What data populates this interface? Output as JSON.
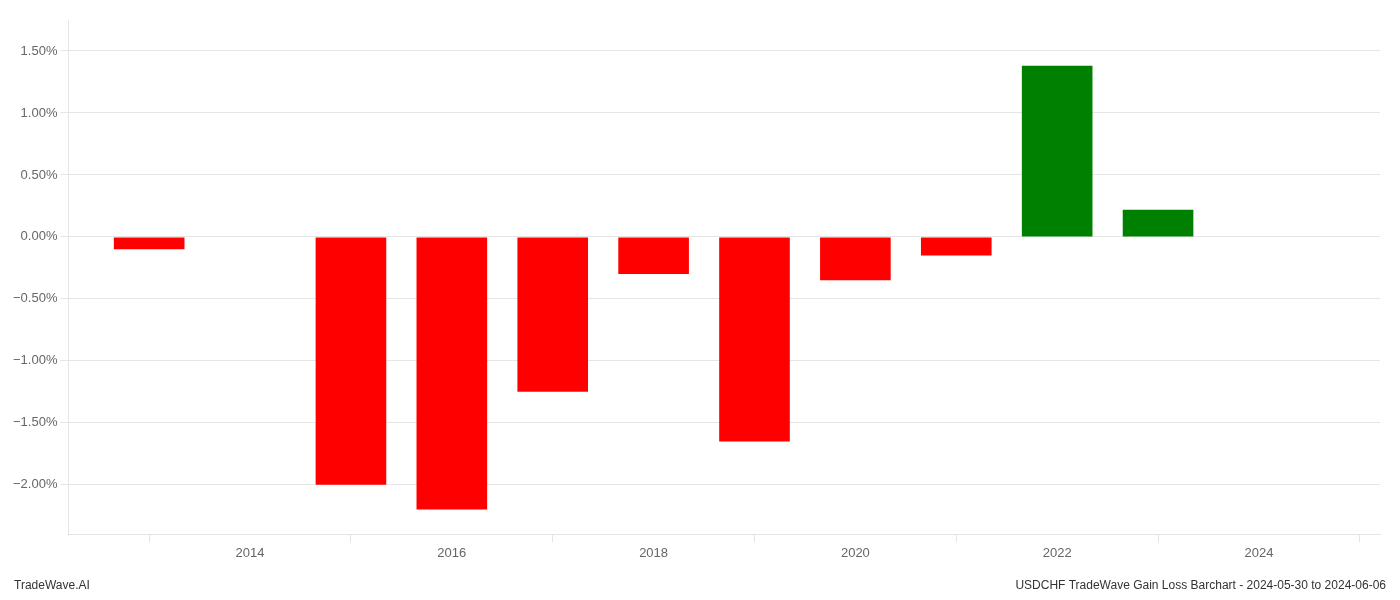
{
  "chart_data": {
    "type": "bar",
    "annotations": [
      "TradeWave.AI",
      "USDCHF TradeWave Gain Loss Barchart - 2024-05-30 to 2024-06-06"
    ],
    "x": [
      2013,
      2015,
      2016,
      2017,
      2018,
      2019,
      2020,
      2021,
      2022,
      2023
    ],
    "values": [
      -0.001,
      -0.02,
      -0.022,
      -0.0125,
      -0.003,
      -0.0165,
      -0.0035,
      -0.0015,
      0.0138,
      0.0022
    ],
    "colors": [
      "#ff0000",
      "#ff0000",
      "#ff0000",
      "#ff0000",
      "#ff0000",
      "#ff0000",
      "#ff0000",
      "#ff0000",
      "#008000",
      "#008000"
    ],
    "xlim": [
      2012.2,
      2025.2
    ],
    "xticks": [
      2014,
      2016,
      2018,
      2020,
      2022,
      2024
    ],
    "ylim": [
      -0.024,
      0.0175
    ],
    "yticks": [
      {
        "value": -0.02,
        "label": "−2.00%"
      },
      {
        "value": -0.015,
        "label": "−1.50%"
      },
      {
        "value": -0.01,
        "label": "−1.00%"
      },
      {
        "value": -0.005,
        "label": "−0.50%"
      },
      {
        "value": 0.0,
        "label": "0.00%"
      },
      {
        "value": 0.005,
        "label": "0.50%"
      },
      {
        "value": 0.01,
        "label": "1.00%"
      },
      {
        "value": 0.015,
        "label": "1.50%"
      }
    ],
    "grid": true
  }
}
